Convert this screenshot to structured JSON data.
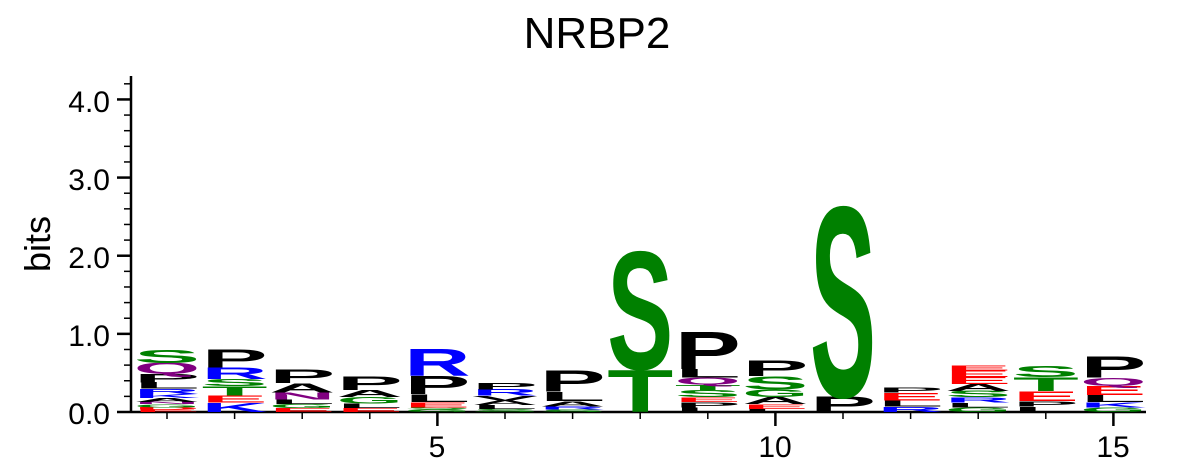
{
  "chart_data": {
    "type": "sequence-logo",
    "title": "NRBP2",
    "ylabel": "bits",
    "xlabel": "",
    "ylim": [
      0,
      4.3
    ],
    "y_ticks": [
      "0.0",
      "1.0",
      "2.0",
      "3.0",
      "4.0"
    ],
    "x_ticks": [
      {
        "position": 5,
        "label": "5"
      },
      {
        "position": 10,
        "label": "10"
      },
      {
        "position": 15,
        "label": "15"
      }
    ],
    "colors": {
      "polar": "#008000",
      "basic": "#0000ff",
      "acidic": "#ff0000",
      "hydrophobic": "#000000",
      "amide": "#800080"
    },
    "letter_groups": {
      "S": "polar",
      "T": "polar",
      "G": "polar",
      "Y": "polar",
      "C": "polar",
      "Q": "amide",
      "N": "amide",
      "R": "basic",
      "K": "basic",
      "H": "basic",
      "D": "acidic",
      "E": "acidic",
      "P": "hydrophobic",
      "A": "hydrophobic",
      "L": "hydrophobic",
      "V": "hydrophobic",
      "I": "hydrophobic",
      "M": "hydrophobic",
      "F": "hydrophobic",
      "W": "hydrophobic"
    },
    "positions": [
      {
        "position": 1,
        "stack": [
          [
            "E",
            0.03
          ],
          [
            "D",
            0.03
          ],
          [
            "G",
            0.04
          ],
          [
            "N",
            0.03
          ],
          [
            "A",
            0.05
          ],
          [
            "K",
            0.05
          ],
          [
            "R",
            0.07
          ],
          [
            "L",
            0.08
          ],
          [
            "P",
            0.11
          ],
          [
            "Q",
            0.14
          ],
          [
            "S",
            0.17
          ]
        ]
      },
      {
        "position": 2,
        "stack": [
          [
            "K",
            0.12
          ],
          [
            "E",
            0.09
          ],
          [
            "T",
            0.12
          ],
          [
            "S",
            0.09
          ],
          [
            "R",
            0.15
          ],
          [
            "P",
            0.24
          ]
        ]
      },
      {
        "position": 3,
        "stack": [
          [
            "E",
            0.05
          ],
          [
            "G",
            0.05
          ],
          [
            "L",
            0.06
          ],
          [
            "N",
            0.09
          ],
          [
            "A",
            0.12
          ],
          [
            "P",
            0.18
          ]
        ]
      },
      {
        "position": 4,
        "stack": [
          [
            "E",
            0.05
          ],
          [
            "L",
            0.06
          ],
          [
            "G",
            0.08
          ],
          [
            "A",
            0.09
          ],
          [
            "P",
            0.18
          ]
        ]
      },
      {
        "position": 5,
        "stack": [
          [
            "G",
            0.03
          ],
          [
            "S",
            0.03
          ],
          [
            "E",
            0.07
          ],
          [
            "L",
            0.1
          ],
          [
            "P",
            0.24
          ],
          [
            "R",
            0.36
          ]
        ]
      },
      {
        "position": 6,
        "stack": [
          [
            "S",
            0.04
          ],
          [
            "L",
            0.05
          ],
          [
            "A",
            0.06
          ],
          [
            "V",
            0.06
          ],
          [
            "R",
            0.08
          ],
          [
            "P",
            0.08
          ]
        ]
      },
      {
        "position": 7,
        "stack": [
          [
            "S",
            0.03
          ],
          [
            "R",
            0.04
          ],
          [
            "A",
            0.07
          ],
          [
            "L",
            0.12
          ],
          [
            "P",
            0.28
          ]
        ]
      },
      {
        "position": 8,
        "stack": [
          [
            "T",
            0.55
          ],
          [
            "S",
            1.55
          ]
        ]
      },
      {
        "position": 9,
        "stack": [
          [
            "L",
            0.06
          ],
          [
            "P",
            0.07
          ],
          [
            "E",
            0.06
          ],
          [
            "S",
            0.09
          ],
          [
            "T",
            0.07
          ],
          [
            "Q",
            0.09
          ],
          [
            "L",
            0.11
          ],
          [
            "P",
            0.49
          ]
        ]
      },
      {
        "position": 10,
        "stack": [
          [
            "L",
            0.04
          ],
          [
            "E",
            0.06
          ],
          [
            "A",
            0.09
          ],
          [
            "G",
            0.1
          ],
          [
            "S",
            0.17
          ],
          [
            "P",
            0.2
          ]
        ]
      },
      {
        "position": 11,
        "stack": [
          [
            "P",
            0.2
          ],
          [
            "S",
            2.5
          ]
        ]
      },
      {
        "position": 12,
        "stack": [
          [
            "R",
            0.07
          ],
          [
            "L",
            0.08
          ],
          [
            "E",
            0.1
          ],
          [
            "P",
            0.07
          ]
        ]
      },
      {
        "position": 13,
        "stack": [
          [
            "G",
            0.06
          ],
          [
            "L",
            0.06
          ],
          [
            "R",
            0.07
          ],
          [
            "S",
            0.08
          ],
          [
            "A",
            0.09
          ],
          [
            "E",
            0.09
          ],
          [
            "E",
            0.08
          ],
          [
            "E",
            0.07
          ]
        ]
      },
      {
        "position": 14,
        "stack": [
          [
            "L",
            0.07
          ],
          [
            "P",
            0.07
          ],
          [
            "E",
            0.13
          ],
          [
            "T",
            0.18
          ],
          [
            "S",
            0.14
          ]
        ]
      },
      {
        "position": 15,
        "stack": [
          [
            "G",
            0.06
          ],
          [
            "K",
            0.07
          ],
          [
            "L",
            0.09
          ],
          [
            "E",
            0.12
          ],
          [
            "Q",
            0.1
          ],
          [
            "P",
            0.28
          ]
        ]
      }
    ]
  }
}
